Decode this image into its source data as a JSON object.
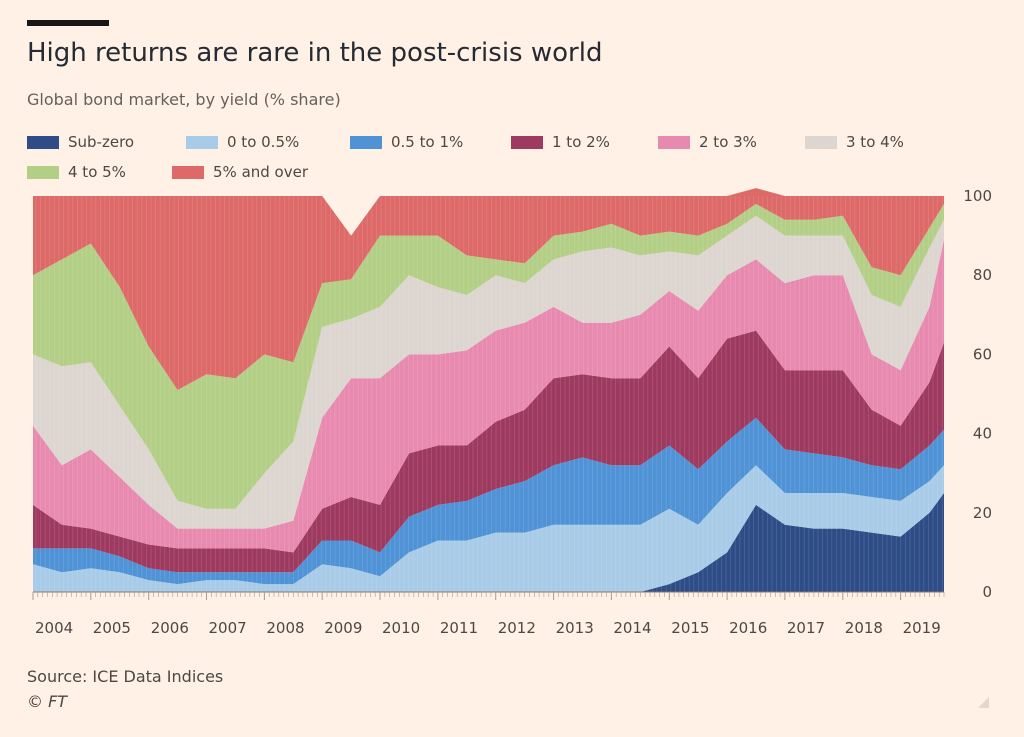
{
  "header": {
    "title": "High returns are rare in the post-crisis world",
    "subtitle": "Global bond market, by yield (% share)"
  },
  "footer": {
    "source": "Source: ICE Data Indices",
    "copyright": "© FT"
  },
  "chart_data": {
    "type": "area",
    "stacked": true,
    "title": "High returns are rare in the post-crisis world",
    "subtitle": "Global bond market, by yield (% share)",
    "xlabel": "",
    "ylabel": "% share",
    "ylim": [
      0,
      100
    ],
    "yticks": [
      0,
      20,
      40,
      60,
      80,
      100
    ],
    "xlim": [
      2004.0,
      2019.75
    ],
    "xticks": [
      2004,
      2005,
      2006,
      2007,
      2008,
      2009,
      2010,
      2011,
      2012,
      2013,
      2014,
      2015,
      2016,
      2017,
      2018,
      2019
    ],
    "xtick_labels": [
      "2004",
      "2005",
      "2006",
      "2007",
      "2008",
      "2009",
      "2010",
      "2011",
      "2012",
      "2013",
      "2014",
      "2015",
      "2016",
      "2017",
      "2018",
      "2019"
    ],
    "grid": false,
    "legend_position": "top",
    "x": [
      2004.0,
      2004.5,
      2005.0,
      2005.5,
      2006.0,
      2006.5,
      2007.0,
      2007.5,
      2008.0,
      2008.5,
      2009.0,
      2009.5,
      2010.0,
      2010.5,
      2011.0,
      2011.5,
      2012.0,
      2012.5,
      2013.0,
      2013.5,
      2014.0,
      2014.5,
      2015.0,
      2015.5,
      2016.0,
      2016.5,
      2017.0,
      2017.5,
      2018.0,
      2018.5,
      2019.0,
      2019.5,
      2019.75
    ],
    "series": [
      {
        "name": "Sub-zero",
        "color": "#2e4d87",
        "values": [
          0,
          0,
          0,
          0,
          0,
          0,
          0,
          0,
          0,
          0,
          0,
          0,
          0,
          0,
          0,
          0,
          0,
          0,
          0,
          0,
          0,
          0,
          2,
          5,
          10,
          22,
          17,
          16,
          16,
          15,
          14,
          20,
          25
        ]
      },
      {
        "name": "0 to 0.5%",
        "color": "#a8cbe8",
        "values": [
          7,
          5,
          6,
          5,
          3,
          2,
          3,
          3,
          2,
          2,
          7,
          6,
          4,
          10,
          13,
          13,
          15,
          15,
          17,
          17,
          17,
          17,
          19,
          12,
          15,
          10,
          8,
          9,
          9,
          9,
          9,
          8,
          7
        ]
      },
      {
        "name": "0.5 to 1%",
        "color": "#4f93d6",
        "values": [
          4,
          6,
          5,
          4,
          3,
          3,
          2,
          2,
          3,
          3,
          6,
          7,
          6,
          9,
          9,
          10,
          11,
          13,
          15,
          17,
          15,
          15,
          16,
          14,
          13,
          12,
          11,
          10,
          9,
          8,
          8,
          9,
          9
        ]
      },
      {
        "name": "1 to 2%",
        "color": "#9e3a5f",
        "values": [
          11,
          6,
          5,
          5,
          6,
          6,
          6,
          6,
          6,
          5,
          8,
          11,
          12,
          16,
          15,
          14,
          17,
          18,
          22,
          21,
          22,
          22,
          25,
          23,
          26,
          22,
          20,
          21,
          22,
          14,
          11,
          16,
          22
        ]
      },
      {
        "name": "2 to 3%",
        "color": "#e88aaf",
        "values": [
          20,
          15,
          20,
          15,
          10,
          5,
          5,
          5,
          5,
          8,
          23,
          30,
          32,
          25,
          23,
          24,
          23,
          22,
          18,
          13,
          14,
          16,
          14,
          17,
          16,
          18,
          22,
          24,
          24,
          14,
          14,
          19,
          26
        ]
      },
      {
        "name": "3 to 4%",
        "color": "#ddd5cf",
        "values": [
          18,
          25,
          22,
          18,
          14,
          7,
          5,
          5,
          14,
          20,
          23,
          15,
          18,
          20,
          17,
          14,
          14,
          10,
          12,
          18,
          19,
          15,
          10,
          14,
          10,
          11,
          12,
          10,
          10,
          15,
          16,
          15,
          5
        ]
      },
      {
        "name": "4 to 5%",
        "color": "#b3cf86",
        "values": [
          20,
          27,
          30,
          30,
          26,
          28,
          34,
          33,
          30,
          20,
          11,
          10,
          18,
          10,
          13,
          10,
          4,
          5,
          6,
          5,
          6,
          5,
          5,
          5,
          3,
          3,
          4,
          4,
          5,
          7,
          8,
          5,
          4
        ]
      },
      {
        "name": "5% and over",
        "color": "#dd6a68",
        "values": [
          20,
          16,
          12,
          23,
          38,
          49,
          45,
          46,
          40,
          42,
          22,
          11,
          10,
          10,
          10,
          15,
          16,
          17,
          10,
          9,
          7,
          10,
          9,
          10,
          7,
          4,
          6,
          6,
          5,
          18,
          20,
          8,
          2
        ]
      }
    ]
  }
}
